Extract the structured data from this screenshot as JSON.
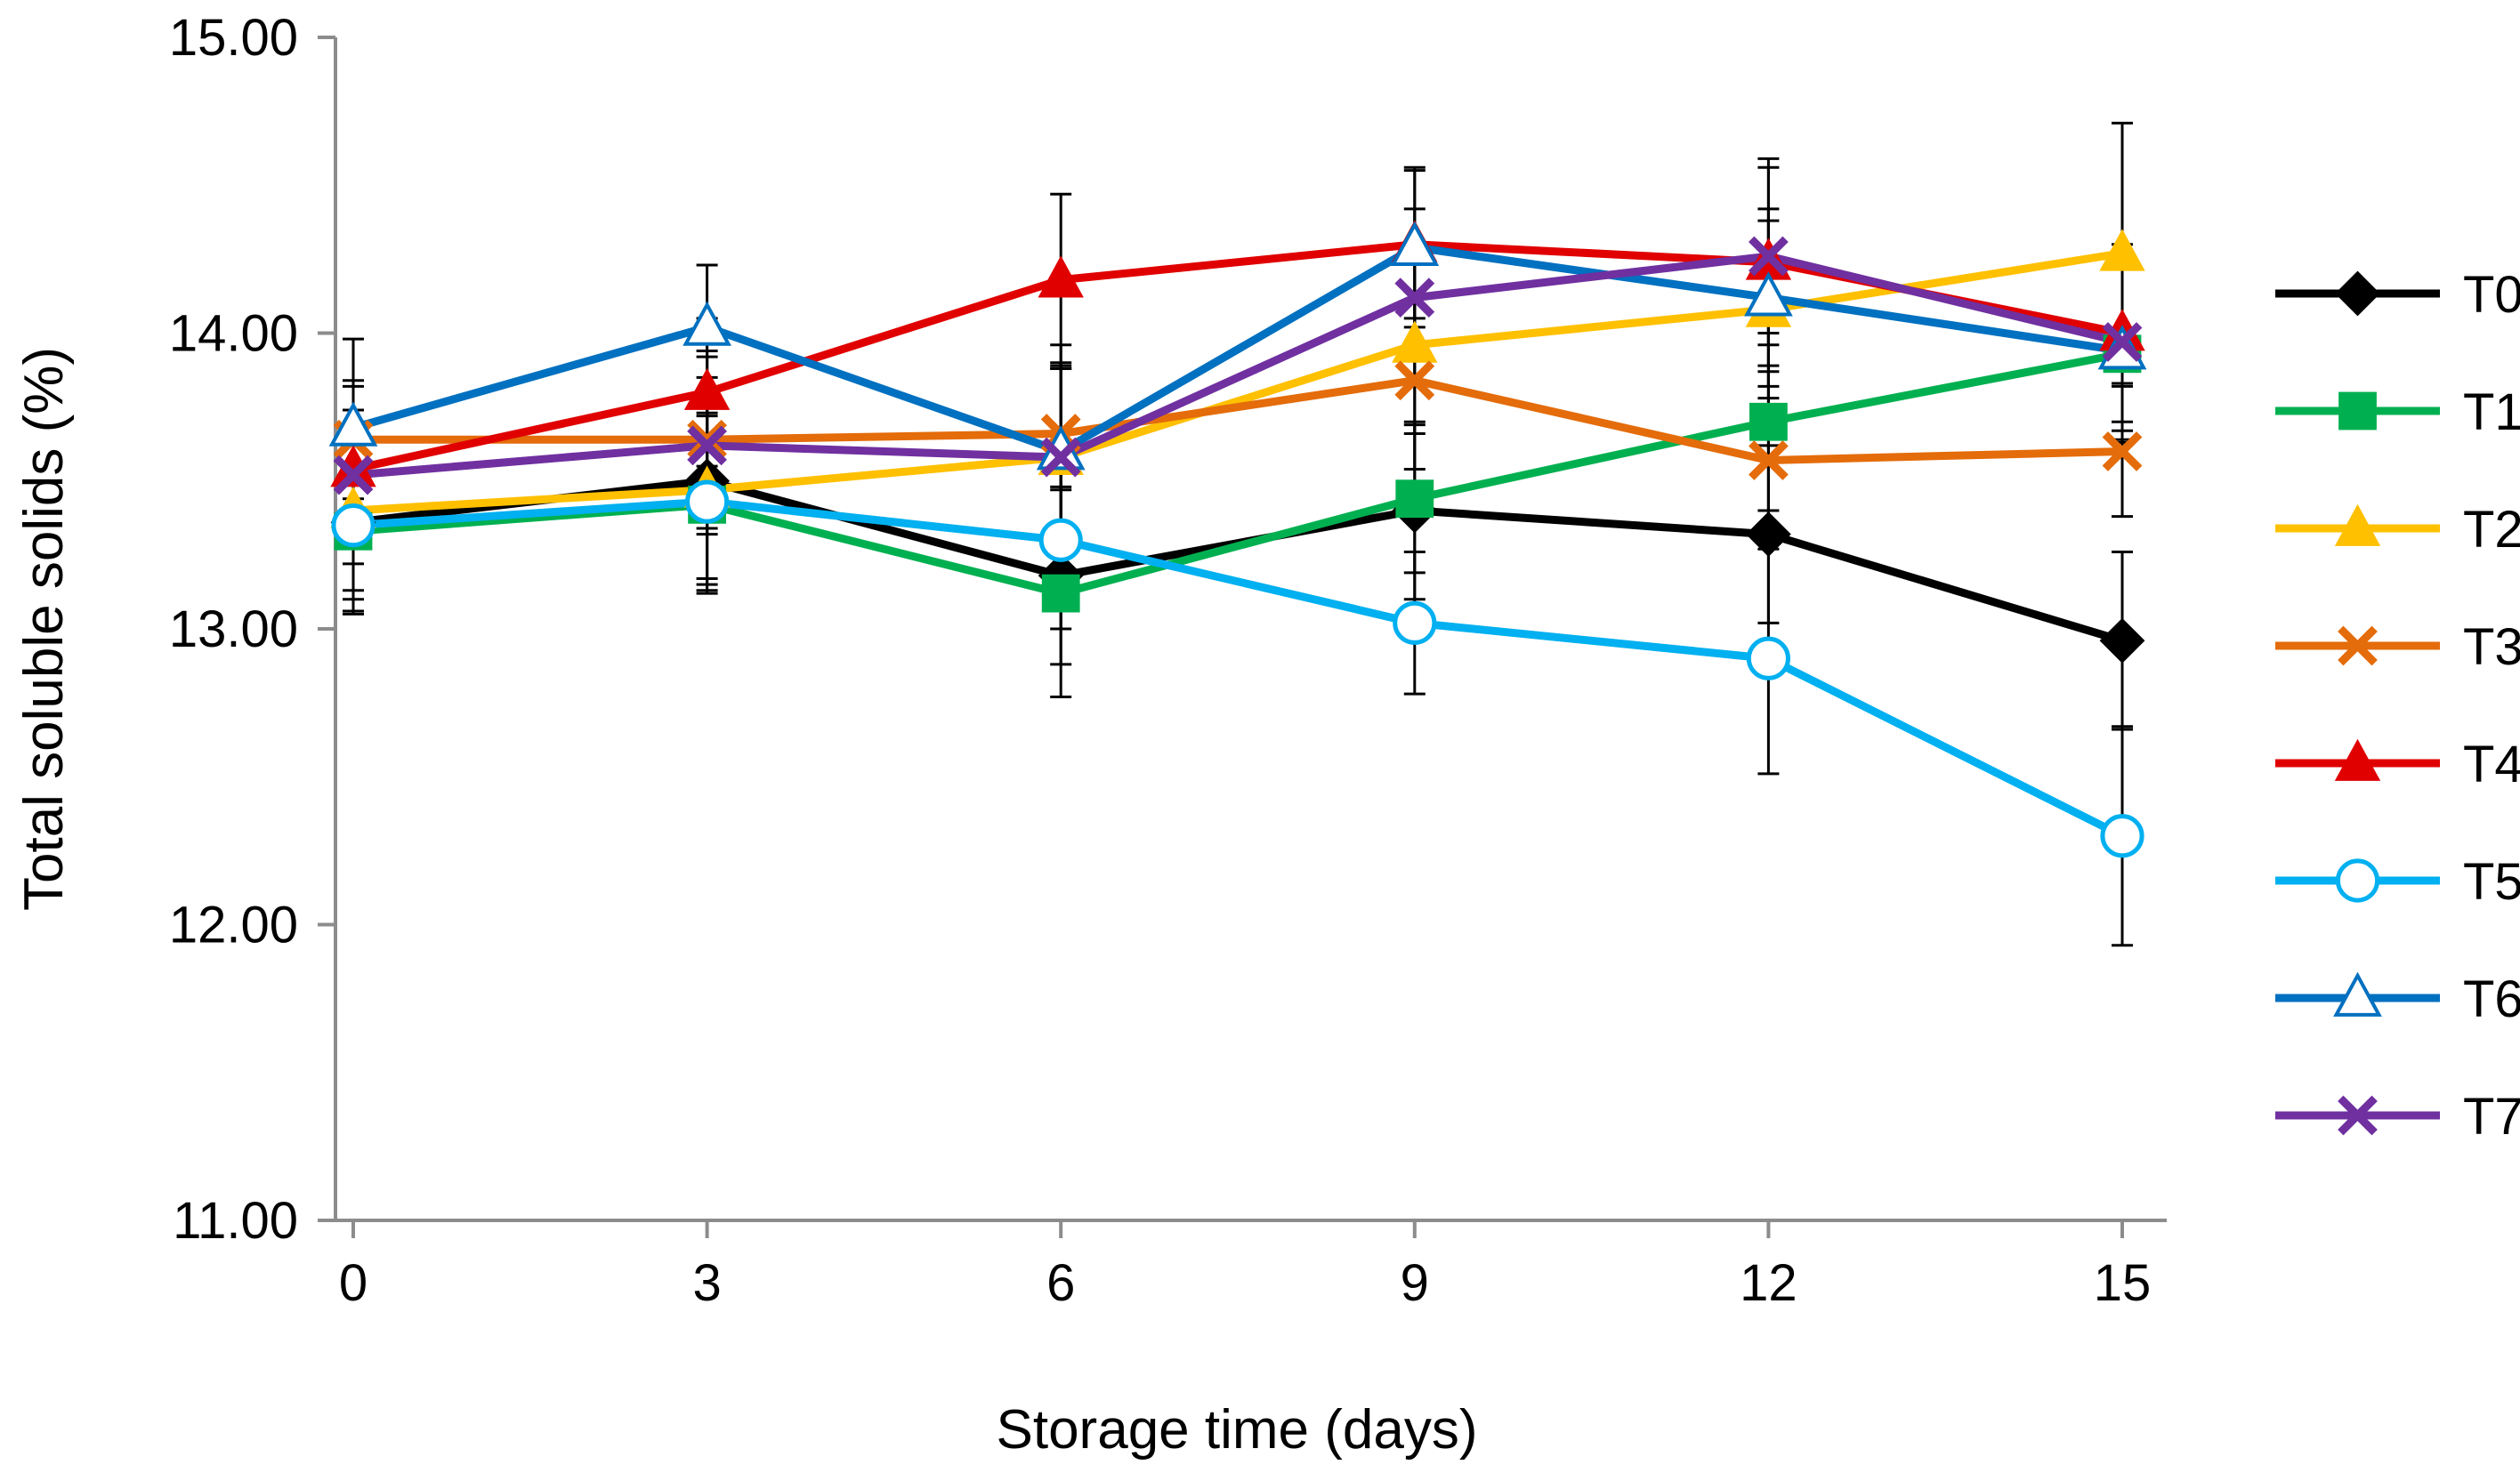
{
  "chart_data": {
    "type": "line",
    "title": "",
    "xlabel": "Storage time (days)",
    "ylabel": "Total soluble solids (%)",
    "x": [
      0,
      3,
      6,
      9,
      12,
      15
    ],
    "x_tick_labels": [
      "0",
      "3",
      "6",
      "9",
      "12",
      "15"
    ],
    "ylim": [
      11,
      15
    ],
    "y_ticks": [
      11,
      12,
      13,
      14,
      15
    ],
    "y_tick_labels": [
      "11.00",
      "12.00",
      "13.00",
      "14.00",
      "15.00"
    ],
    "grid": false,
    "legend_position": "right",
    "series": [
      {
        "name": "T0",
        "color": "#000000",
        "marker": "diamond-filled",
        "values": [
          13.36,
          13.5,
          13.18,
          13.4,
          13.32,
          12.96
        ],
        "errors": [
          0.3,
          0.35,
          0.3,
          0.3,
          0.3,
          0.3
        ]
      },
      {
        "name": "T1",
        "color": "#00B050",
        "marker": "square-filled",
        "values": [
          13.33,
          13.42,
          13.12,
          13.44,
          13.7,
          13.93
        ],
        "errors": [
          0.2,
          0.3,
          0.35,
          0.25,
          0.3,
          0.3
        ]
      },
      {
        "name": "T2",
        "color": "#FFC000",
        "marker": "triangle-filled",
        "values": [
          13.4,
          13.47,
          13.58,
          13.96,
          14.08,
          14.27
        ],
        "errors": [
          0.3,
          0.3,
          0.3,
          0.3,
          0.3,
          0.44
        ]
      },
      {
        "name": "T3",
        "color": "#E46C0A",
        "marker": "x",
        "values": [
          13.64,
          13.64,
          13.66,
          13.84,
          13.57,
          13.6
        ],
        "errors": [
          0.2,
          0.3,
          0.3,
          0.3,
          0.3,
          0.22
        ]
      },
      {
        "name": "T4",
        "color": "#E00000",
        "marker": "triangle-filled",
        "values": [
          13.54,
          13.8,
          14.18,
          14.3,
          14.24,
          14.0
        ],
        "errors": [
          0.2,
          0.25,
          0.29,
          0.25,
          0.35,
          0.3
        ]
      },
      {
        "name": "T5",
        "color": "#00B0F0",
        "marker": "circle-open",
        "values": [
          13.35,
          13.43,
          13.3,
          13.02,
          12.9,
          12.3
        ],
        "errors": [
          0.3,
          0.3,
          0.3,
          0.24,
          0.39,
          0.37
        ]
      },
      {
        "name": "T6",
        "color": "#0070C0",
        "marker": "triangle-open",
        "values": [
          13.68,
          14.02,
          13.6,
          14.29,
          14.12,
          13.94
        ],
        "errors": [
          0.3,
          0.21,
          0.3,
          0.27,
          0.3,
          0.3
        ]
      },
      {
        "name": "T7",
        "color": "#7030A0",
        "marker": "x",
        "values": [
          13.52,
          13.62,
          13.58,
          14.12,
          14.26,
          13.97
        ],
        "errors": [
          0.3,
          0.3,
          0.3,
          0.3,
          0.3,
          0.3
        ]
      }
    ]
  }
}
